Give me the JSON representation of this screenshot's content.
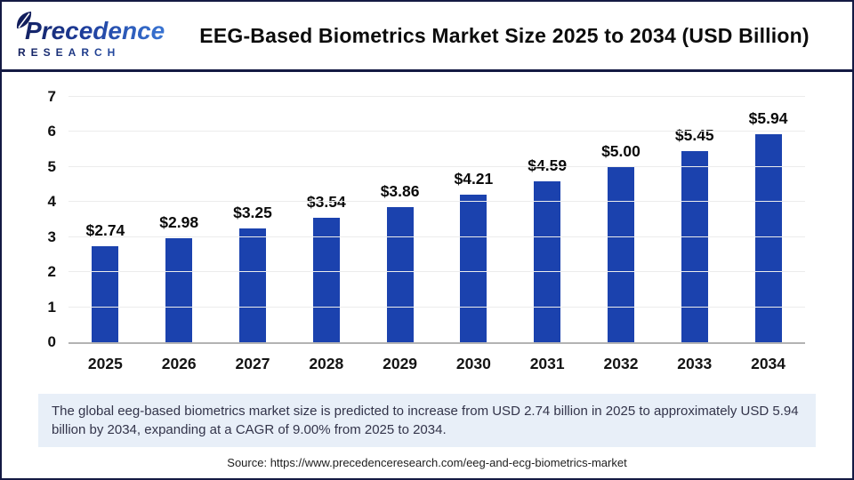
{
  "header": {
    "logo": {
      "name": "Precedence",
      "subname": "RESEARCH"
    },
    "title": "EEG-Based Biometrics Market Size 2025 to 2034 (USD Billion)"
  },
  "chart_data": {
    "type": "bar",
    "title": "EEG-Based Biometrics Market Size 2025 to 2034 (USD Billion)",
    "categories": [
      "2025",
      "2026",
      "2027",
      "2028",
      "2029",
      "2030",
      "2031",
      "2032",
      "2033",
      "2034"
    ],
    "values": [
      2.74,
      2.98,
      3.25,
      3.54,
      3.86,
      4.21,
      4.59,
      5.0,
      5.45,
      5.94
    ],
    "value_labels": [
      "$2.74",
      "$2.98",
      "$3.25",
      "$3.54",
      "$3.86",
      "$4.21",
      "$4.59",
      "$5.00",
      "$5.45",
      "$5.94"
    ],
    "xlabel": "",
    "ylabel": "",
    "ylim": [
      0,
      7
    ],
    "yticks": [
      0,
      1,
      2,
      3,
      4,
      5,
      6,
      7
    ],
    "grid": true,
    "legend": "none",
    "bar_color": "#1b42ae"
  },
  "summary": {
    "text": "The global eeg-based biometrics market size is predicted to increase from USD 2.74 billion in 2025 to approximately USD 5.94 billion by 2034, expanding at a CAGR of 9.00% from 2025 to 2034."
  },
  "source": {
    "text": "Source: https://www.precedenceresearch.com/eeg-and-ecg-biometrics-market"
  },
  "colors": {
    "bar": "#1b42ae",
    "border": "#141a43",
    "gridline": "#ececec",
    "axis_line": "#b3b3b3",
    "summary_bg": "#e8eff8",
    "logo_navy": "#121e5c",
    "logo_blue": "#3c7bd9"
  }
}
